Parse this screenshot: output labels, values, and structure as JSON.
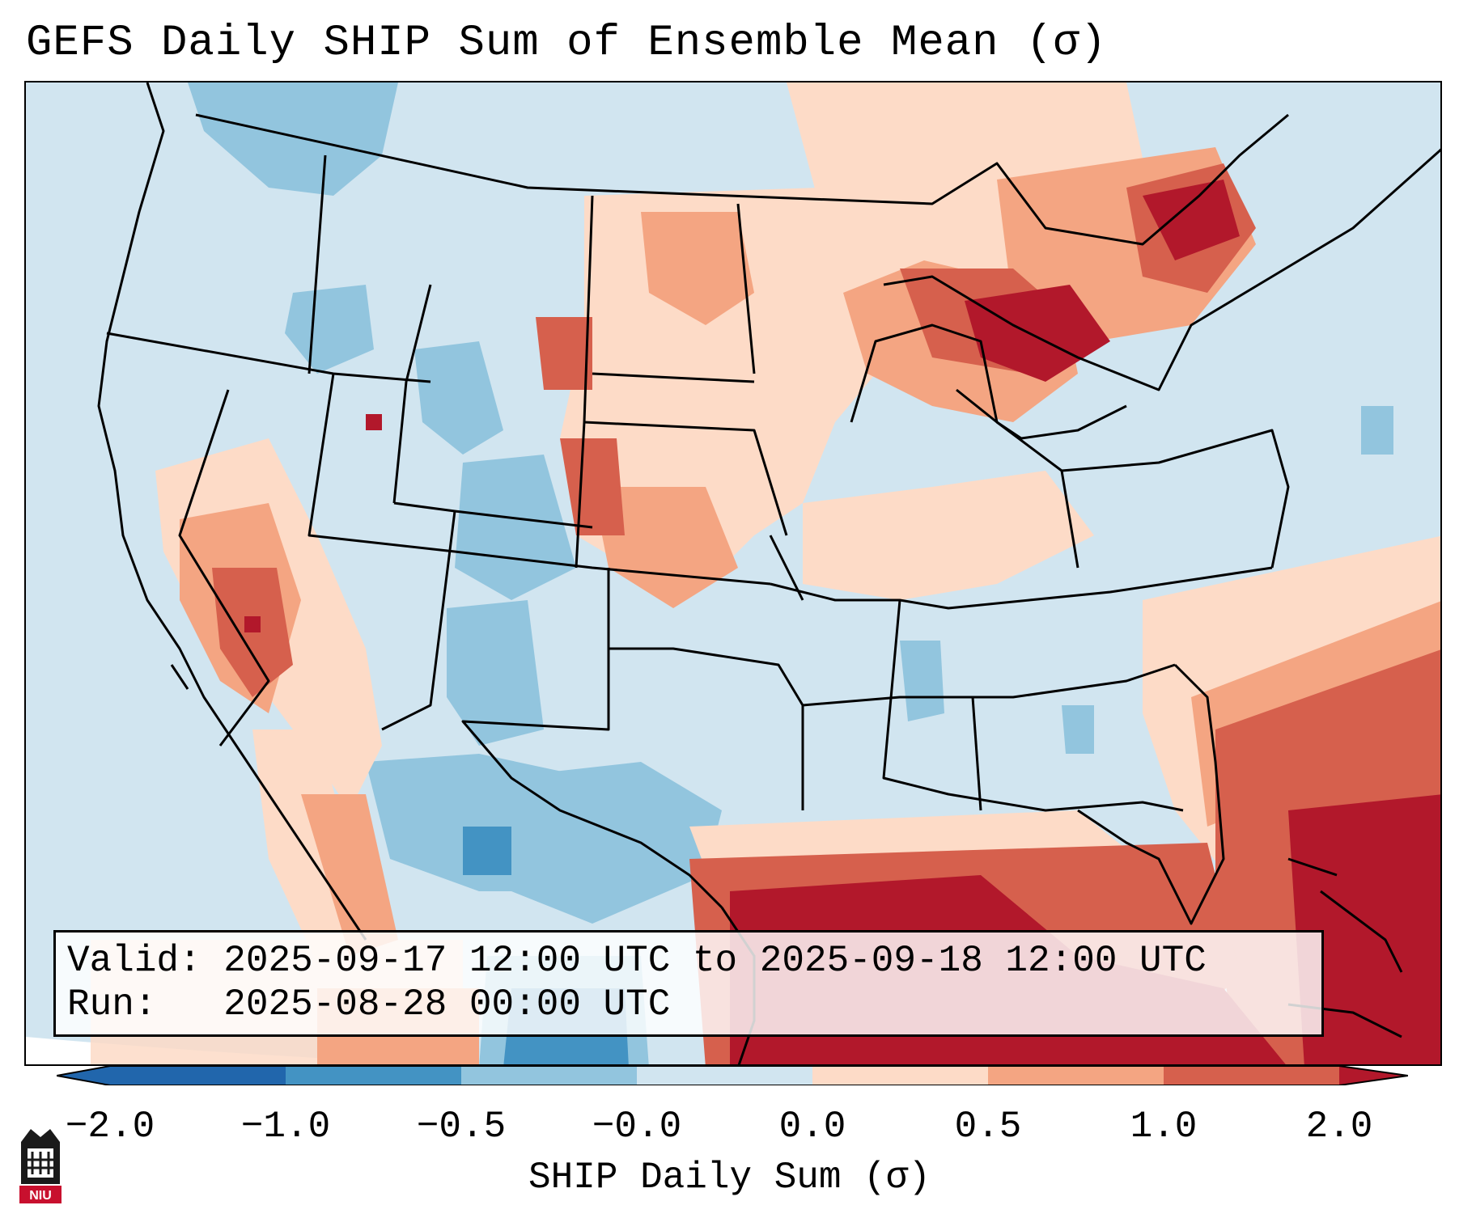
{
  "title": "GEFS Daily SHIP Sum of Ensemble Mean (σ)",
  "info": {
    "valid_label": "Valid:",
    "valid_value": "2025-09-17 12:00 UTC to 2025-09-18 12:00 UTC",
    "run_label": "Run:",
    "run_value": "2025-08-28 00:00 UTC"
  },
  "colorbar": {
    "label": "SHIP Daily Sum (σ)",
    "ticks": [
      "−2.0",
      "−1.0",
      "−0.5",
      "−0.0",
      "0.0",
      "0.5",
      "1.0",
      "2.0"
    ],
    "colors": [
      "#2166ac",
      "#4393c3",
      "#92c5de",
      "#d1e5f0",
      "#f7f7f7",
      "#fddbc7",
      "#f4a582",
      "#d6604d",
      "#b2182b"
    ]
  },
  "logo": {
    "text": "NIU"
  }
}
